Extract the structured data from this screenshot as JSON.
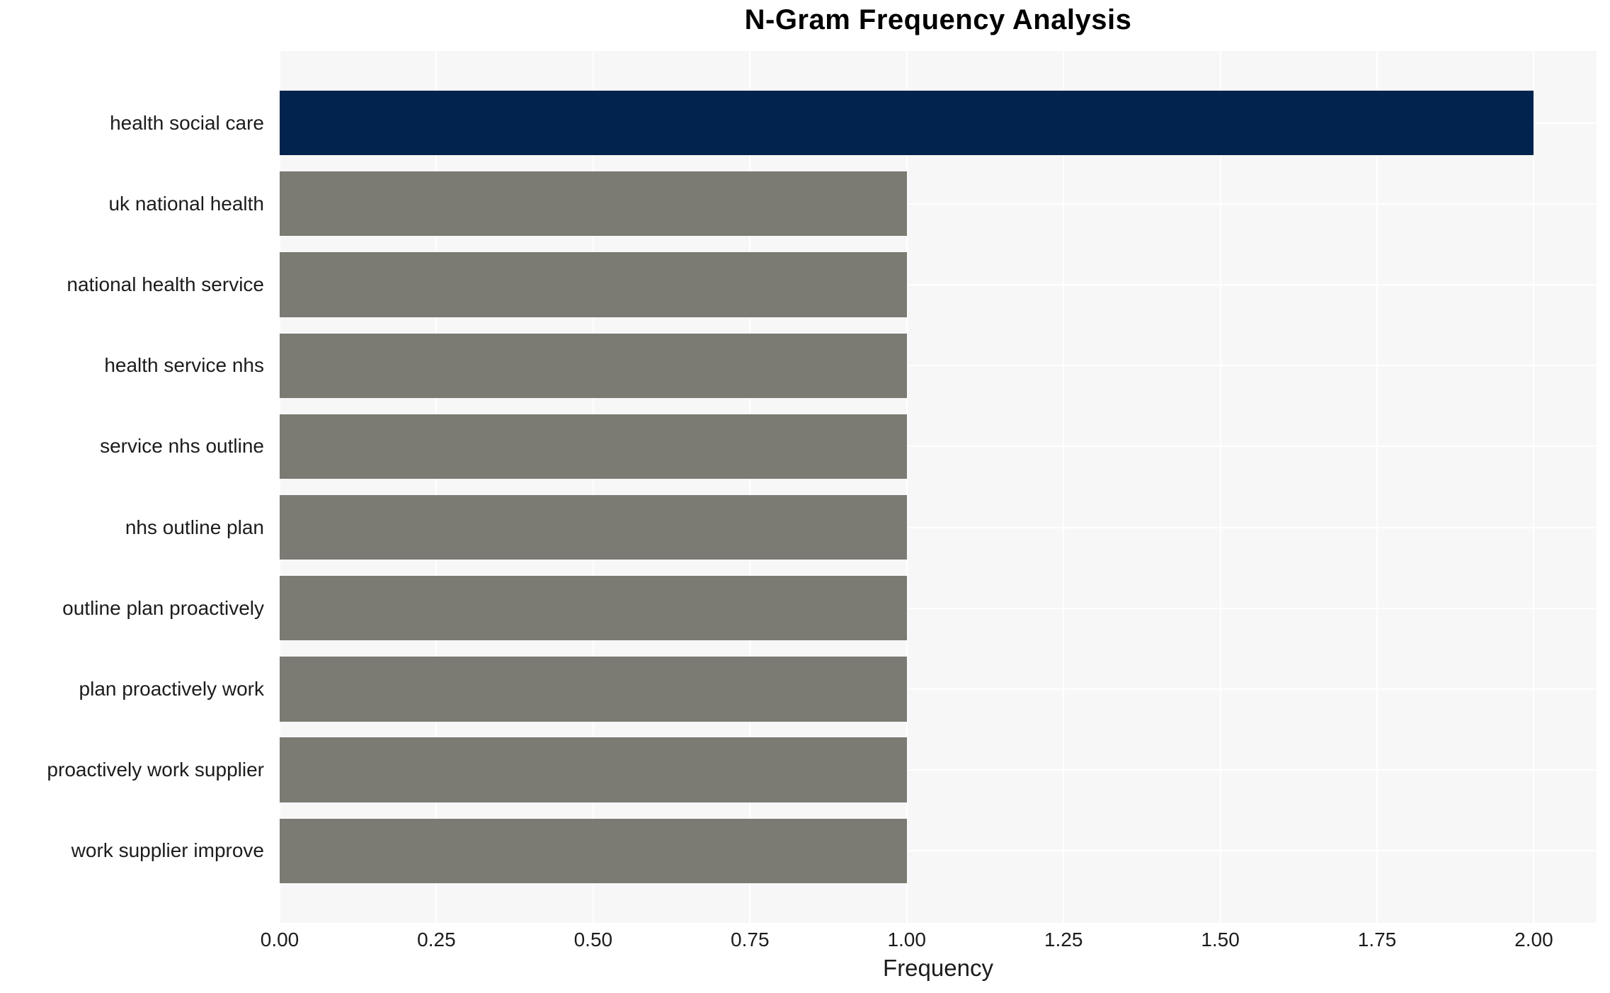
{
  "chart_data": {
    "type": "bar",
    "orientation": "horizontal",
    "title": "N-Gram Frequency Analysis",
    "xlabel": "Frequency",
    "ylabel": "",
    "categories": [
      "health social care",
      "uk national health",
      "national health service",
      "health service nhs",
      "service nhs outline",
      "nhs outline plan",
      "outline plan proactively",
      "plan proactively work",
      "proactively work supplier",
      "work supplier improve"
    ],
    "values": [
      2.0,
      1.0,
      1.0,
      1.0,
      1.0,
      1.0,
      1.0,
      1.0,
      1.0,
      1.0
    ],
    "bar_colors": [
      "#02234E",
      "#7B7A73",
      "#7B7A73",
      "#7B7A73",
      "#7B7A73",
      "#7B7A73",
      "#7B7A73",
      "#7B7A73",
      "#7B7A73",
      "#7B7A73"
    ],
    "xlim": [
      0,
      2.1
    ],
    "x_tick_values": [
      0,
      0.25,
      0.5,
      0.75,
      1.0,
      1.25,
      1.5,
      1.75,
      2.0
    ],
    "x_tick_labels": [
      "0.00",
      "0.25",
      "0.50",
      "0.75",
      "1.00",
      "1.25",
      "1.50",
      "1.75",
      "2.00"
    ],
    "grid": true,
    "legend": false,
    "colors": {
      "highlight_bar": "#02234E",
      "base_bar": "#7B7A73",
      "plot_background": "#F7F7F7",
      "figure_background": "#FFFFFF",
      "grid_line": "#FFFFFF",
      "tick_text": "#1C1C1C",
      "title_text": "#000000"
    },
    "layout": {
      "bar_fraction_of_row": 0.8,
      "y_units_span": 10.78,
      "y_first_center_offset": 0.89
    }
  }
}
